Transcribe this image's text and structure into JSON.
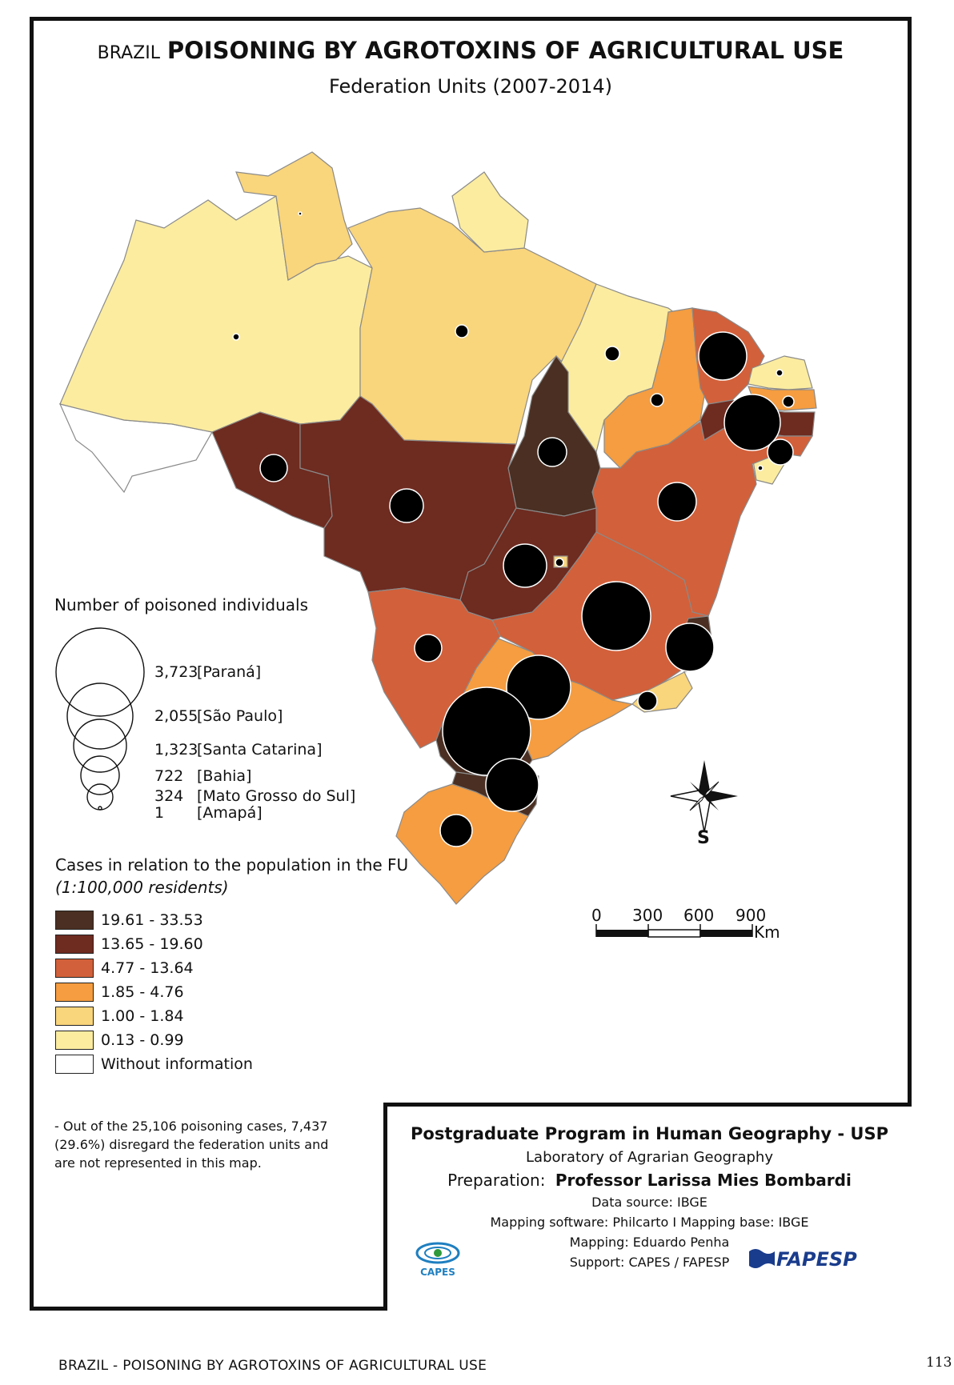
{
  "title": {
    "prefix": "BRAZIL",
    "main": "POISONING BY AGROTOXINS OF AGRICULTURAL USE",
    "subtitle": "Federation Units (2007-2014)"
  },
  "colors": {
    "class_1": "#4a2f22",
    "class_2": "#6e2b20",
    "class_3": "#d2603a",
    "class_4": "#f59d40",
    "class_5": "#f9d57c",
    "class_6": "#fbeca0",
    "no_info": "#ffffff",
    "circle": "#000000"
  },
  "size_legend": {
    "heading": "Number of poisoned individuals",
    "items": [
      {
        "value": "3,723",
        "label": "[Paraná]"
      },
      {
        "value": "2,055",
        "label": "[São Paulo]"
      },
      {
        "value": "1,323",
        "label": "[Santa Catarina]"
      },
      {
        "value": "722",
        "label": "[Bahia]"
      },
      {
        "value": "324",
        "label": "[Mato Grosso do Sul]"
      },
      {
        "value": "1",
        "label": "[Amapá]"
      }
    ]
  },
  "rate_legend": {
    "heading": "Cases in relation to the population in the FU",
    "subheading": "(1:100,000 residents)",
    "classes": [
      {
        "label": "19.61 - 33.53",
        "color": "#4a2f22"
      },
      {
        "label": "13.65 - 19.60",
        "color": "#6e2b20"
      },
      {
        "label": "4.77 - 13.64",
        "color": "#d2603a"
      },
      {
        "label": "1.85 - 4.76",
        "color": "#f59d40"
      },
      {
        "label": "1.00 - 1.84",
        "color": "#f9d57c"
      },
      {
        "label": "0.13 - 0.99",
        "color": "#fbeca0"
      },
      {
        "label": "Without information",
        "color": "#ffffff"
      }
    ]
  },
  "note": {
    "line1": "- Out of the 25,106 poisoning cases, 7,437",
    "line2": "(29.6%) disregard the federation units and",
    "line3": "are not represented in this map."
  },
  "compass": {
    "label": "S",
    "icon": "compass-rose-icon"
  },
  "scale_bar": {
    "ticks": [
      "0",
      "300",
      "600",
      "900"
    ],
    "unit": "Km"
  },
  "credits": {
    "program": "Postgraduate Program in Human Geography - USP",
    "lab": "Laboratory of Agrarian Geography",
    "prep_label": "Preparation:",
    "prep_name": "Professor Larissa Mies Bombardi",
    "source": "Data source: IBGE",
    "software": "Mapping software: Philcarto I Mapping base: IBGE",
    "mapping": "Mapping: Eduardo Penha",
    "support": "Support: CAPES / FAPESP",
    "logo_capes": "CAPES",
    "logo_fapesp": "FAPESP"
  },
  "footer": {
    "caption": "BRAZIL - POISONING BY AGROTOXINS OF AGRICULTURAL USE",
    "page": "113"
  }
}
